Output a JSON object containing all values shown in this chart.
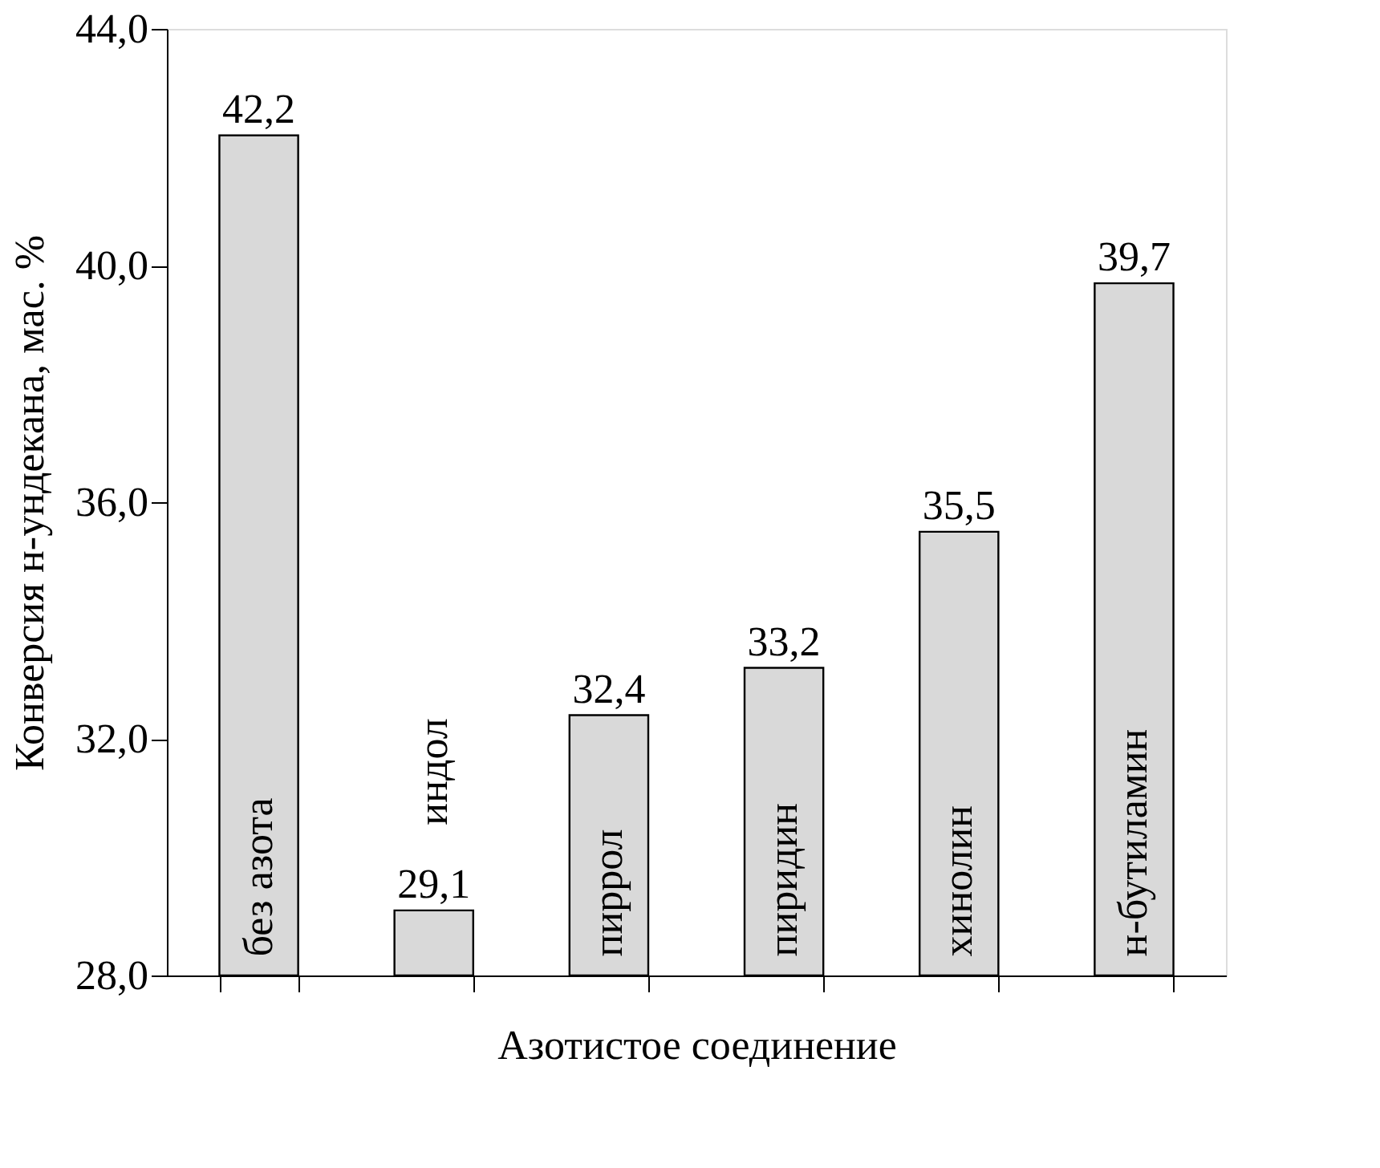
{
  "chart_data": {
    "type": "bar",
    "xlabel": "Азотистое соединение",
    "ylabel": "Конверсия н-ундекана, мас. %",
    "categories": [
      "без азота",
      "индол",
      "пиррол",
      "пиридин",
      "хинолин",
      "н-бутиламин"
    ],
    "values": [
      42.2,
      29.1,
      32.4,
      33.2,
      35.5,
      39.7
    ],
    "value_labels": [
      "42,2",
      "29,1",
      "32,4",
      "33,2",
      "35,5",
      "39,7"
    ],
    "color": "#d9d9d9",
    "ylim": [
      28,
      44
    ],
    "yticks": [
      {
        "value": 28,
        "label": "28,0"
      },
      {
        "value": 32,
        "label": "32,0"
      },
      {
        "value": 36,
        "label": "36,0"
      },
      {
        "value": 40,
        "label": "40,0"
      },
      {
        "value": 44,
        "label": "44,0"
      }
    ],
    "grid": false
  }
}
